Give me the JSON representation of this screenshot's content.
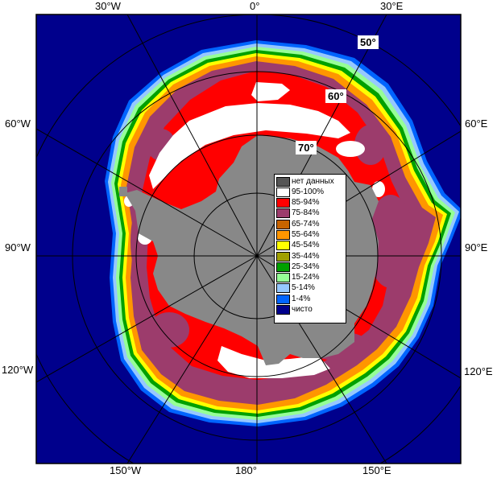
{
  "map": {
    "colors": {
      "ocean": "#00008c",
      "land": "#888888",
      "no_data": "#555555",
      "ice_95_100": "#ffffff",
      "ice_85_94": "#ff0000",
      "ice_75_84": "#9c3c6c",
      "ice_65_74": "#c86400",
      "ice_55_64": "#ff9600",
      "ice_45_54": "#ffff00",
      "ice_35_44": "#a0a000",
      "ice_25_34": "#00a000",
      "ice_15_24": "#96ff96",
      "ice_5_14": "#96c8ff",
      "ice_1_4": "#0064ff"
    },
    "longitude_labels": {
      "lon_30w": "30°W",
      "lon_0": "0°",
      "lon_30e": "30°E",
      "lon_60w": "60°W",
      "lon_60e": "60°E",
      "lon_90w": "90°W",
      "lon_90e": "90°E",
      "lon_120w": "120°W",
      "lon_120e": "120°E",
      "lon_150w": "150°W",
      "lon_180": "180°",
      "lon_150e": "150°E"
    },
    "latitude_labels": {
      "lat_50": "50°",
      "lat_60": "60°",
      "lat_70": "70°"
    }
  },
  "legend": {
    "items": [
      {
        "label": "нет данных",
        "color": "#555555"
      },
      {
        "label": "95-100%",
        "color": "#ffffff"
      },
      {
        "label": "85-94%",
        "color": "#ff0000"
      },
      {
        "label": "75-84%",
        "color": "#9c3c6c"
      },
      {
        "label": "65-74%",
        "color": "#c86400"
      },
      {
        "label": "55-64%",
        "color": "#ff9600"
      },
      {
        "label": "45-54%",
        "color": "#ffff00"
      },
      {
        "label": "35-44%",
        "color": "#a0a000"
      },
      {
        "label": "25-34%",
        "color": "#00a000"
      },
      {
        "label": "15-24%",
        "color": "#96ff96"
      },
      {
        "label": "5-14%",
        "color": "#96c8ff"
      },
      {
        "label": "1-4%",
        "color": "#0064ff"
      },
      {
        "label": "чисто",
        "color": "#00008c"
      }
    ]
  }
}
